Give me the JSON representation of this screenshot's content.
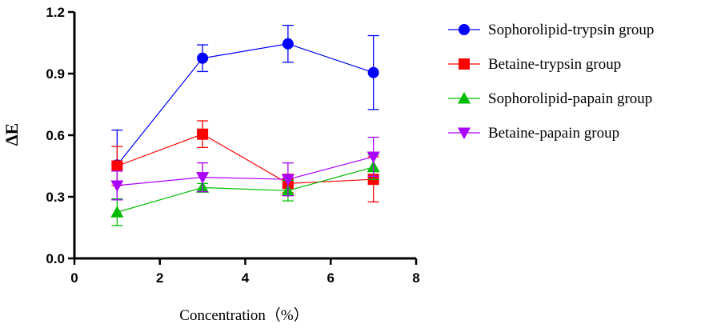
{
  "chart_data": {
    "type": "line",
    "title": "",
    "xlabel": "Concentration（%）",
    "ylabel": "ΔE",
    "xlim": [
      0,
      8
    ],
    "ylim": [
      0,
      1.2
    ],
    "xticks": [
      0,
      2,
      4,
      6,
      8
    ],
    "yticks": [
      0.0,
      0.3,
      0.6,
      0.9,
      1.2
    ],
    "x_tick_labels": [
      "0",
      "2",
      "4",
      "6",
      "8"
    ],
    "y_tick_labels": [
      "0.0",
      "0.3",
      "0.6",
      "0.9",
      "1.2"
    ],
    "legend_position": "right",
    "x": [
      1,
      3,
      5,
      7
    ],
    "series": [
      {
        "name": "Sophorolipid-trypsin group",
        "marker": "circle",
        "color": "#0000ff",
        "values": [
          0.455,
          0.975,
          1.045,
          0.905
        ],
        "errors": [
          0.17,
          0.065,
          0.09,
          0.18
        ]
      },
      {
        "name": "Betaine-trypsin group",
        "marker": "square",
        "color": "#ff0000",
        "values": [
          0.45,
          0.605,
          0.365,
          0.385
        ],
        "errors": [
          0.095,
          0.065,
          0.045,
          0.11
        ]
      },
      {
        "name": "Sophorolipid-papain group",
        "marker": "triangle-up",
        "color": "#00bb00",
        "values": [
          0.225,
          0.345,
          0.33,
          0.445
        ],
        "errors": [
          0.065,
          0.02,
          0.05,
          0.06
        ]
      },
      {
        "name": "Betaine-papain group",
        "marker": "triangle-down",
        "color": "#aa00ff",
        "values": [
          0.355,
          0.395,
          0.385,
          0.495
        ],
        "errors": [
          0.07,
          0.07,
          0.08,
          0.095
        ]
      }
    ]
  }
}
